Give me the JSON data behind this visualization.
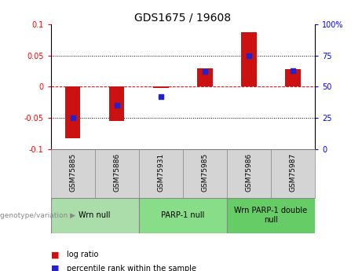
{
  "title": "GDS1675 / 19608",
  "samples": [
    "GSM75885",
    "GSM75886",
    "GSM75931",
    "GSM75985",
    "GSM75986",
    "GSM75987"
  ],
  "log_ratios": [
    -0.083,
    -0.055,
    -0.002,
    0.03,
    0.087,
    0.028
  ],
  "percentile_ranks": [
    25,
    35,
    42,
    62,
    75,
    63
  ],
  "ylim_left": [
    -0.1,
    0.1
  ],
  "ylim_right": [
    0,
    100
  ],
  "yticks_left": [
    -0.1,
    -0.05,
    0,
    0.05,
    0.1
  ],
  "yticks_right": [
    0,
    25,
    50,
    75,
    100
  ],
  "hlines": [
    -0.05,
    0.0,
    0.05
  ],
  "hline_styles": [
    "dotted",
    "dashed",
    "dotted"
  ],
  "hline_colors": [
    "black",
    "red",
    "black"
  ],
  "bar_color": "#cc1111",
  "dot_color": "#2222cc",
  "bar_width": 0.35,
  "groups_info": [
    [
      0,
      1,
      "Wrn null",
      "#aaddaa"
    ],
    [
      2,
      3,
      "PARP-1 null",
      "#88dd88"
    ],
    [
      4,
      5,
      "Wrn PARP-1 double\nnull",
      "#66cc66"
    ]
  ],
  "legend_bar_label": "log ratio",
  "legend_dot_label": "percentile rank within the sample",
  "xlabel_arrow_text": "genotype/variation",
  "cell_bg_color": "#d4d4d4",
  "plot_bg_color": "#ffffff",
  "title_fontsize": 10,
  "tick_fontsize": 7,
  "label_fontsize": 6.5,
  "group_fontsize": 7
}
